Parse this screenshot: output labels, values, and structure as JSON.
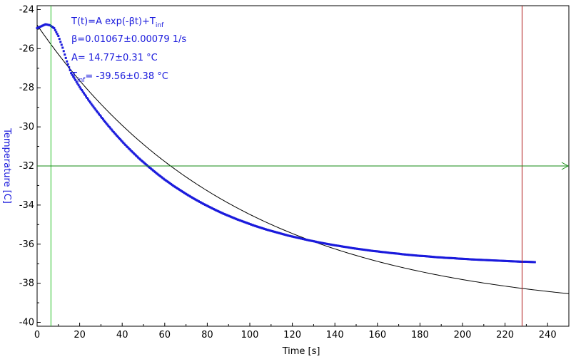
{
  "chart_data": {
    "type": "scatter",
    "xlabel": "Time [s]",
    "ylabel": "Temperature [C]",
    "xlim": [
      0,
      250
    ],
    "ylim": [
      -40.2,
      -23.8
    ],
    "x_ticks": [
      "0",
      "20",
      "40",
      "60",
      "80",
      "100",
      "120",
      "140",
      "160",
      "180",
      "200",
      "220",
      "240"
    ],
    "y_ticks": [
      "-24",
      "-26",
      "-28",
      "-30",
      "-32",
      "-34",
      "-36",
      "-38",
      "-40"
    ],
    "annotation": {
      "formula_prefix": "T(t)=A exp(-βt)+T",
      "formula_subscript": "inf",
      "beta": "β=0.01067±0.00079 1/s",
      "A": "A= 14.77±0.31 °C",
      "tinf_prefix": "T",
      "tinf_subscript": "inf",
      "tinf_value": "= -39.56±0.38 °C"
    },
    "fit": {
      "model": "T(t)=A exp(-βt)+T_inf",
      "beta": 0.01067,
      "A": 14.77,
      "T_inf": -39.56,
      "x_range": [
        0,
        250
      ],
      "color": "#000000"
    },
    "series": [
      {
        "color": "#1a1adc",
        "x": [
          0,
          2,
          4,
          6,
          8,
          10,
          12,
          14,
          16,
          18,
          20,
          22,
          24,
          26,
          28,
          30,
          32,
          34,
          36,
          38,
          40,
          42,
          44,
          46,
          48,
          50,
          52,
          54,
          56,
          58,
          60,
          62,
          64,
          66,
          68,
          70,
          72,
          74,
          76,
          78,
          80,
          82,
          84,
          86,
          88,
          90,
          92,
          94,
          96,
          98,
          100,
          102,
          104,
          106,
          108,
          110,
          112,
          114,
          116,
          118,
          120,
          122,
          124,
          126,
          128,
          130,
          132,
          134,
          136,
          138,
          140,
          142,
          144,
          146,
          148,
          150,
          152,
          154,
          156,
          158,
          160,
          162,
          164,
          166,
          168,
          170,
          172,
          174,
          176,
          178,
          180,
          182,
          184,
          186,
          188,
          190,
          192,
          194,
          196,
          198,
          200,
          202,
          204,
          206,
          208,
          210,
          212,
          214,
          216,
          218,
          220,
          222,
          224,
          226,
          228,
          230,
          232,
          234
        ],
        "y": [
          -24.95,
          -24.85,
          -24.75,
          -24.8,
          -24.95,
          -25.35,
          -25.95,
          -26.65,
          -27.25,
          -27.6,
          -27.96,
          -28.28,
          -28.6,
          -28.9,
          -29.19,
          -29.47,
          -29.75,
          -30.01,
          -30.27,
          -30.51,
          -30.75,
          -30.98,
          -31.2,
          -31.41,
          -31.62,
          -31.81,
          -32.0,
          -32.18,
          -32.36,
          -32.53,
          -32.7,
          -32.85,
          -33.01,
          -33.15,
          -33.29,
          -33.43,
          -33.56,
          -33.69,
          -33.81,
          -33.93,
          -34.04,
          -34.15,
          -34.26,
          -34.36,
          -34.46,
          -34.55,
          -34.64,
          -34.73,
          -34.81,
          -34.89,
          -34.97,
          -35.05,
          -35.12,
          -35.19,
          -35.26,
          -35.32,
          -35.38,
          -35.44,
          -35.5,
          -35.56,
          -35.61,
          -35.66,
          -35.71,
          -35.76,
          -35.81,
          -35.85,
          -35.9,
          -35.94,
          -35.98,
          -36.02,
          -36.06,
          -36.09,
          -36.13,
          -36.16,
          -36.2,
          -36.23,
          -36.26,
          -36.29,
          -36.32,
          -36.35,
          -36.37,
          -36.4,
          -36.42,
          -36.45,
          -36.47,
          -36.49,
          -36.52,
          -36.54,
          -36.56,
          -36.58,
          -36.6,
          -36.61,
          -36.63,
          -36.65,
          -36.67,
          -36.68,
          -36.7,
          -36.71,
          -36.72,
          -36.74,
          -36.75,
          -36.76,
          -36.78,
          -36.79,
          -36.8,
          -36.81,
          -36.82,
          -36.83,
          -36.84,
          -36.85,
          -36.86,
          -36.87,
          -36.88,
          -36.89,
          -36.9,
          -36.9,
          -36.91,
          -36.92
        ]
      }
    ],
    "markers": [
      {
        "orientation": "vertical",
        "x": 6.5,
        "color": "#22c022"
      },
      {
        "orientation": "vertical",
        "x": 228,
        "color": "#b01818"
      },
      {
        "orientation": "horizontal",
        "y": -32,
        "color": "#138a13",
        "arrow": "right"
      }
    ],
    "colors": {
      "axis_title": "#1a1adc",
      "frame": "#000000"
    }
  }
}
